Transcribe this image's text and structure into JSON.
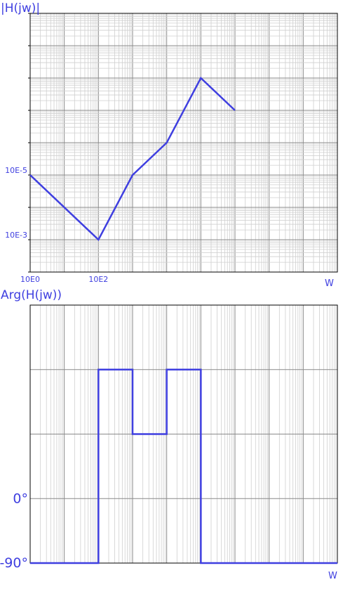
{
  "chart_data": [
    {
      "type": "line",
      "title": "|H(jw)|",
      "xlabel": "W",
      "ylabel": "|H(jw)|",
      "xscale": "log",
      "yscale": "log",
      "grid": true,
      "xlim_decades": [
        0,
        9
      ],
      "ylim_decades": [
        0,
        8
      ],
      "x_tick_labels": [
        {
          "text": "10E0",
          "decade": 0
        },
        {
          "text": "10E2",
          "decade": 2
        }
      ],
      "y_tick_labels": [
        {
          "text": "10E-5",
          "decade": 3
        },
        {
          "text": "10E-3",
          "decade": 1
        }
      ],
      "series": [
        {
          "color": "#3f3fe0",
          "x_decade": [
            0,
            2,
            3,
            4,
            5,
            6
          ],
          "y_decade": [
            3,
            1,
            3,
            4,
            6,
            5
          ]
        }
      ]
    },
    {
      "type": "line",
      "title": "Arg(H(jw))",
      "xlabel": "W",
      "ylabel": "Arg(H(jw))",
      "xscale": "log",
      "grid": true,
      "xlim_decades": [
        0,
        9
      ],
      "ylim_deg": [
        -90,
        270
      ],
      "y_tick_labels": [
        {
          "text": "0°",
          "value": 0
        },
        {
          "text": "-90°",
          "value": -90
        }
      ],
      "series": [
        {
          "color": "#3f3fe0",
          "x_decade": [
            0,
            2,
            2,
            3,
            3,
            4,
            4,
            5,
            5,
            9
          ],
          "y_deg": [
            -90,
            -90,
            180,
            180,
            90,
            90,
            180,
            180,
            -90,
            -90
          ]
        }
      ]
    }
  ]
}
